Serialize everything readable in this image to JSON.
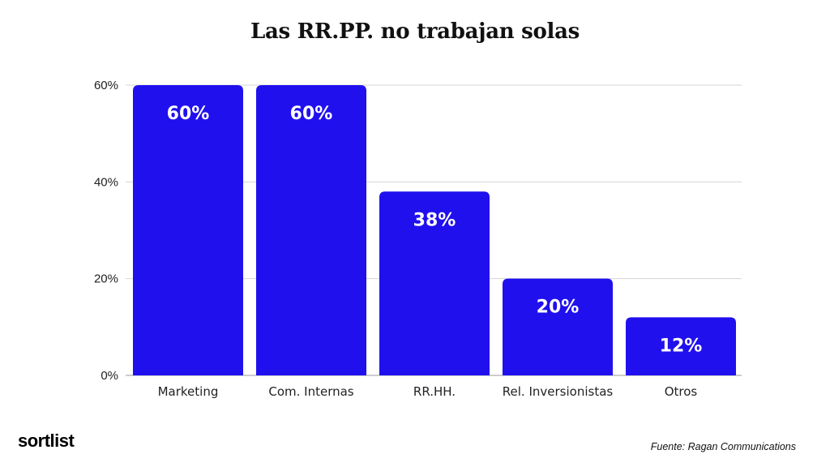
{
  "chart_data": {
    "type": "bar",
    "title": "Las RR.PP. no trabajan solas",
    "categories": [
      "Marketing",
      "Com. Internas",
      "RR.HH.",
      "Rel. Inversionistas",
      "Otros"
    ],
    "values": [
      60,
      60,
      38,
      20,
      12
    ],
    "data_labels": [
      "60%",
      "60%",
      "38%",
      "20%",
      "12%"
    ],
    "yticks": [
      0,
      20,
      40,
      60
    ],
    "ytick_labels": [
      "0%",
      "20%",
      "40%",
      "60%"
    ],
    "ylim": [
      0,
      60
    ],
    "xlabel": "",
    "ylabel": "",
    "grid": true,
    "legend": "none",
    "bar_color": "#2010ee",
    "label_color": "#ffffff"
  },
  "brand": {
    "name": "sortlist"
  },
  "source": {
    "text": "Fuente: Ragan Communications"
  }
}
